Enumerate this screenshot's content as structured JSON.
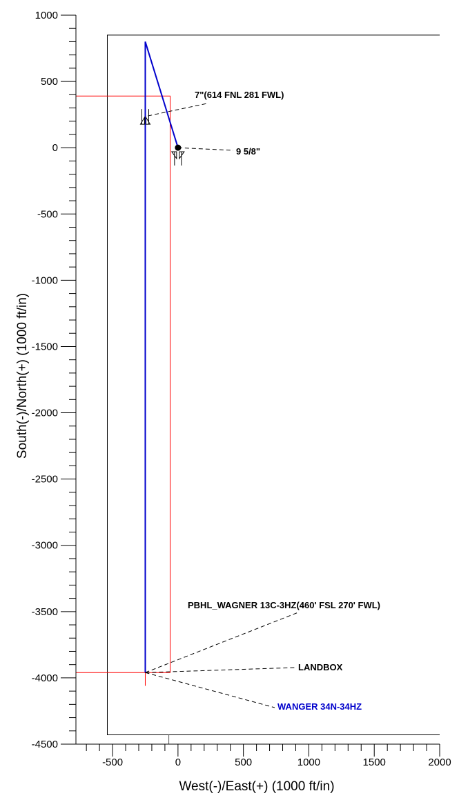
{
  "chart_data": {
    "type": "line",
    "xlabel": "West(-)/East(+) (1000 ft/in)",
    "ylabel": "South(-)/North(+) (1000 ft/in)",
    "xlim": [
      -780,
      2000
    ],
    "ylim": [
      -4500,
      1000
    ],
    "x_ticks": [
      -500,
      0,
      500,
      1000,
      1500,
      2000
    ],
    "y_ticks": [
      1000,
      500,
      0,
      -500,
      -1000,
      -1500,
      -2000,
      -2500,
      -3000,
      -3500,
      -4000,
      -4500
    ],
    "x_tick_labels": [
      "-500",
      "0",
      "500",
      "1000",
      "1500",
      "2000"
    ],
    "y_tick_labels": [
      "1000",
      "500",
      "0",
      "-500",
      "-1000",
      "-1500",
      "-2000",
      "-2500",
      "-3000",
      "-3500",
      "-4000",
      "-4500"
    ],
    "colors": {
      "wellpath": "#0000cc",
      "hardline": "#ff0000",
      "lease": "#000000",
      "leader": "#000000"
    },
    "lease_boundary": {
      "x": [
        -540,
        2000
      ],
      "y": [
        -4430,
        850
      ]
    },
    "hardline_box": {
      "x": [
        -780,
        -60
      ],
      "y": [
        -3960,
        390
      ]
    },
    "series": [
      {
        "name": "WANGER 34N-34HZ",
        "x": [
          0,
          -250,
          -250
        ],
        "y": [
          0,
          800,
          -3960
        ]
      }
    ],
    "surface_location": {
      "x": 0,
      "y": 0
    },
    "casing_points": [
      {
        "label": "9 5/8\"",
        "x": 0,
        "y": -30
      },
      {
        "label": "7\"(614 FNL 281 FWL)",
        "x": -250,
        "y": 250
      }
    ],
    "annotations": [
      {
        "label": "7\"(614 FNL 281 FWL)",
        "target_x": -230,
        "target_y": 240
      },
      {
        "label": "9 5/8\"",
        "target_x": 0,
        "target_y": 0
      },
      {
        "label": "PBHL_WAGNER 13C-3HZ(460' FSL 270' FWL)",
        "target_x": -250,
        "target_y": -3960
      },
      {
        "label": "LANDBOX",
        "target_x": -250,
        "target_y": -3960
      },
      {
        "label": "WANGER 34N-34HZ",
        "target_x": -250,
        "target_y": -3960
      }
    ]
  }
}
